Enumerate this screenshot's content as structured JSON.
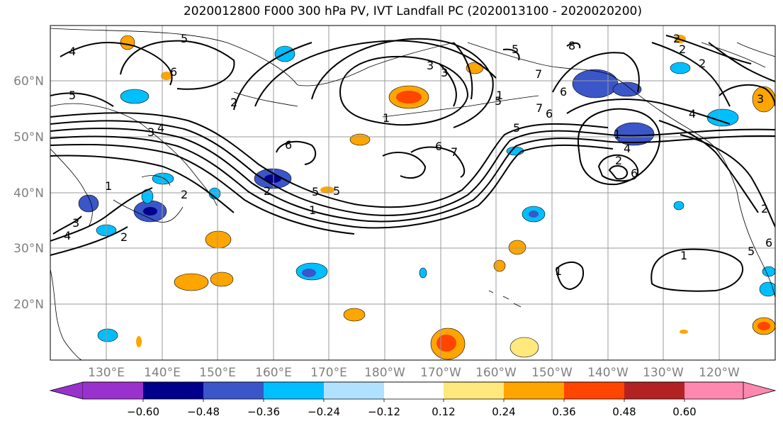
{
  "title": "2020012800 F000 300 hPa PV, IVT Landfall PC (2020013100 - 2020020200)",
  "lat_labels": [
    "60°N",
    "50°N",
    "40°N",
    "30°N",
    "20°N"
  ],
  "lon_labels": [
    "130°E",
    "140°E",
    "150°E",
    "160°E",
    "170°E",
    "180°W",
    "170°W",
    "160°W",
    "150°W",
    "140°W",
    "130°W",
    "120°W"
  ],
  "contour_labels": [
    "4",
    "5",
    "6",
    "5",
    "1",
    "3",
    "2",
    "4",
    "5",
    "3",
    "1",
    "3",
    "4",
    "2",
    "2",
    "1",
    "6",
    "5",
    "1",
    "3",
    "2",
    "1",
    "5",
    "8",
    "6",
    "5",
    "7",
    "6",
    "7",
    "4",
    "2",
    "6",
    "4",
    "7",
    "2",
    "1",
    "3",
    "1",
    "5",
    "6",
    "2",
    "6",
    "5",
    "2",
    "2"
  ],
  "colorbar": {
    "tick_labels": [
      "−0.60",
      "−0.48",
      "−0.36",
      "−0.24",
      "−0.12",
      "0.12",
      "0.24",
      "0.36",
      "0.48",
      "0.60"
    ],
    "colors": [
      "#9932cc",
      "#00008b",
      "#3a56c8",
      "#00bfff",
      "#b0e2ff",
      "#ffffff",
      "#ffe87c",
      "#ffa500",
      "#ff4500",
      "#b22222",
      "#ff88b0"
    ],
    "extend": "both"
  },
  "style": {
    "contour_color": "#000000",
    "grid_color": "#9a9a9a",
    "coast_color": "#000000"
  }
}
